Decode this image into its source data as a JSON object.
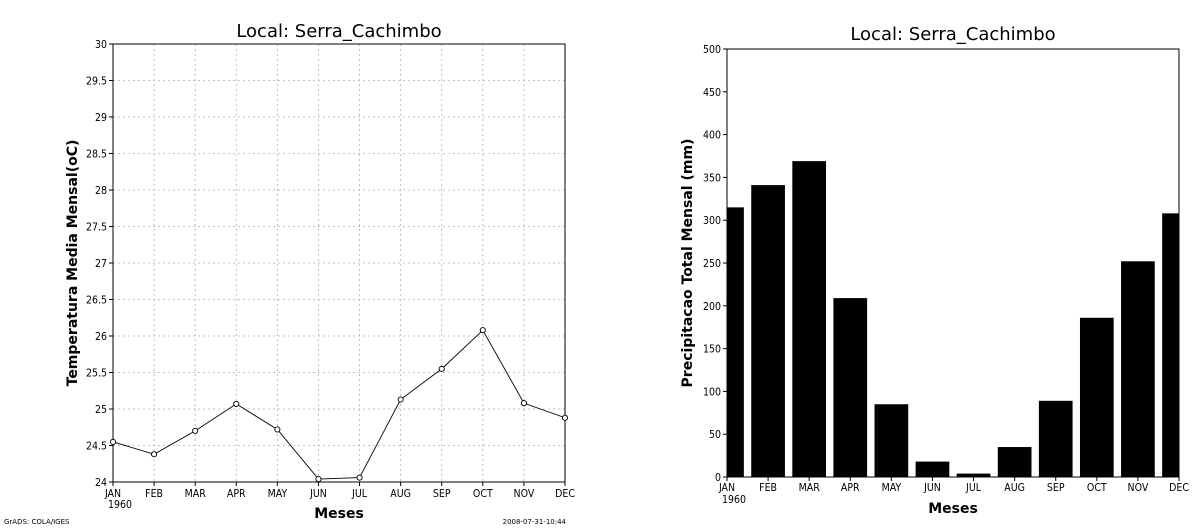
{
  "chart_data": [
    {
      "type": "line",
      "title": "Local: Serra_Cachimbo",
      "xlabel": "Meses",
      "ylabel": "Temperatura Media Mensal(oC)",
      "categories": [
        "JAN",
        "FEB",
        "MAR",
        "APR",
        "MAY",
        "JUN",
        "JUL",
        "AUG",
        "SEP",
        "OCT",
        "NOV",
        "DEC"
      ],
      "year_label": "1960",
      "values": [
        24.55,
        24.38,
        24.7,
        25.07,
        24.72,
        24.04,
        24.06,
        25.13,
        25.55,
        26.08,
        25.08,
        24.88
      ],
      "ylim": [
        24,
        30
      ],
      "yticks": [
        "24",
        "24.5",
        "25",
        "25.5",
        "26",
        "26.5",
        "27",
        "27.5",
        "28",
        "28.5",
        "29",
        "29.5",
        "30"
      ],
      "grid": true,
      "marker": "open-circle",
      "footer_left": "GrADS: COLA/IGES",
      "footer_right": "2008-07-31-10:44"
    },
    {
      "type": "bar",
      "title": "Local: Serra_Cachimbo",
      "xlabel": "Meses",
      "ylabel": "Precipitacao Total Mensal (mm)",
      "categories": [
        "JAN",
        "FEB",
        "MAR",
        "APR",
        "MAY",
        "JUN",
        "JUL",
        "AUG",
        "SEP",
        "OCT",
        "NOV",
        "DEC"
      ],
      "year_label": "1960",
      "values": [
        315,
        341,
        369,
        209,
        85,
        18,
        4,
        35,
        89,
        186,
        252,
        308
      ],
      "ylim": [
        0,
        500
      ],
      "yticks": [
        "0",
        "50",
        "100",
        "150",
        "200",
        "250",
        "300",
        "350",
        "400",
        "450",
        "500"
      ],
      "grid": false,
      "bar_color": "#000000"
    }
  ]
}
